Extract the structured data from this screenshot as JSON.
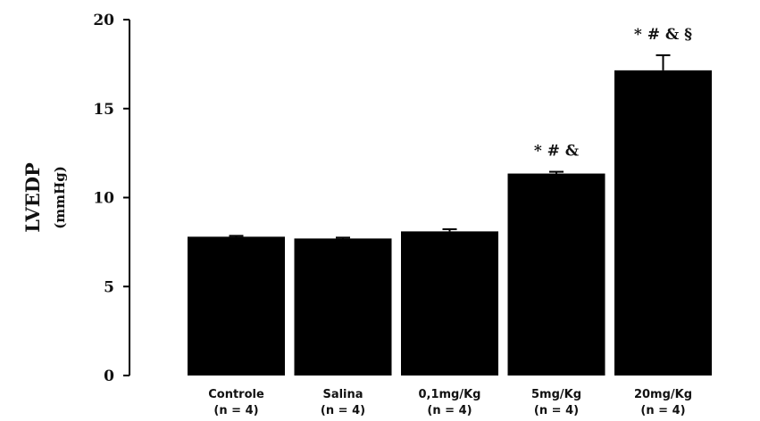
{
  "chart_data": {
    "type": "bar",
    "title": "",
    "ylabel": "LVEDP",
    "ylabel_unit": "(mmHg)",
    "xlabel": "",
    "ylim": [
      0,
      20
    ],
    "yticks": [
      0,
      5,
      10,
      15,
      20
    ],
    "categories": [
      {
        "name": "Controle",
        "n": "(n = 4)"
      },
      {
        "name": "Salina",
        "n": "(n = 4)"
      },
      {
        "name": "0,1mg/Kg",
        "n": "(n = 4)"
      },
      {
        "name": "5mg/Kg",
        "n": "(n = 4)"
      },
      {
        "name": "20mg/Kg",
        "n": "(n = 4)"
      }
    ],
    "values": [
      7.8,
      7.7,
      8.1,
      11.35,
      17.15
    ],
    "errors": [
      0.05,
      0.05,
      0.12,
      0.1,
      0.85
    ],
    "annotations": [
      "",
      "",
      "",
      "* # &",
      "* # & §"
    ],
    "bar_color": "#000000",
    "grid": false,
    "legend": "none"
  }
}
